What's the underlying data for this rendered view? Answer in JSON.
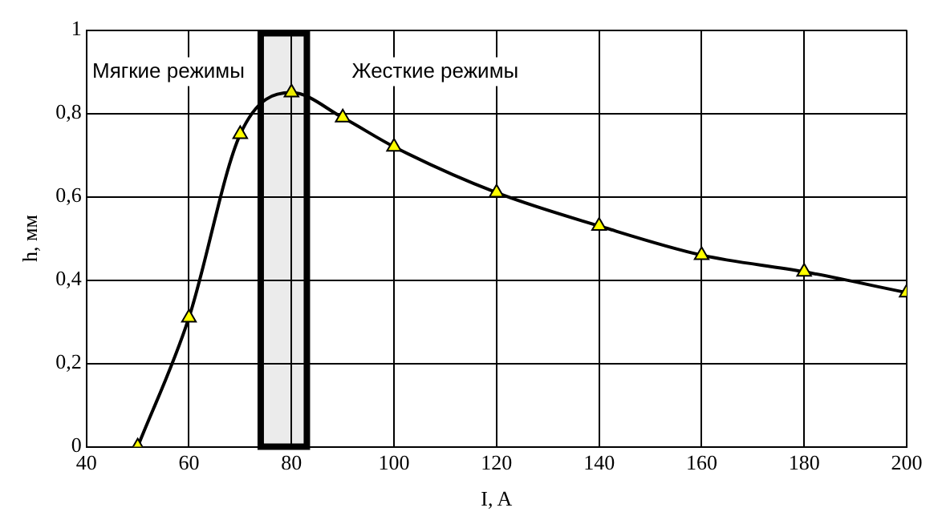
{
  "chart_data": {
    "type": "line",
    "xlabel": "I, A",
    "ylabel": "h, мм",
    "annotations": [
      "Мягкие режимы",
      "Жесткие режимы"
    ],
    "x": [
      50,
      60,
      70,
      80,
      90,
      100,
      120,
      140,
      160,
      180,
      200
    ],
    "series": [
      {
        "color": "#000000",
        "values": [
          0,
          0.31,
          0.75,
          0.85,
          0.79,
          0.72,
          0.61,
          0.53,
          0.46,
          0.42,
          0.37
        ]
      }
    ],
    "xlim": [
      40,
      200
    ],
    "xticks": [
      40,
      60,
      80,
      100,
      120,
      140,
      160,
      180,
      200
    ],
    "ylim": [
      0,
      1
    ],
    "yticks": [
      0,
      {
        "value": 0.2,
        "label": "0,2"
      },
      {
        "value": 0.4,
        "label": "0,4"
      },
      {
        "value": 0.6,
        "label": "0,6"
      },
      {
        "value": 0.8,
        "label": "0,8"
      },
      1
    ],
    "bands": [
      {
        "axis": "x",
        "from": 74,
        "to": 83,
        "color": "#000000"
      }
    ],
    "grid": true,
    "legend": false,
    "marker": "triangle",
    "line_style": "solid"
  }
}
